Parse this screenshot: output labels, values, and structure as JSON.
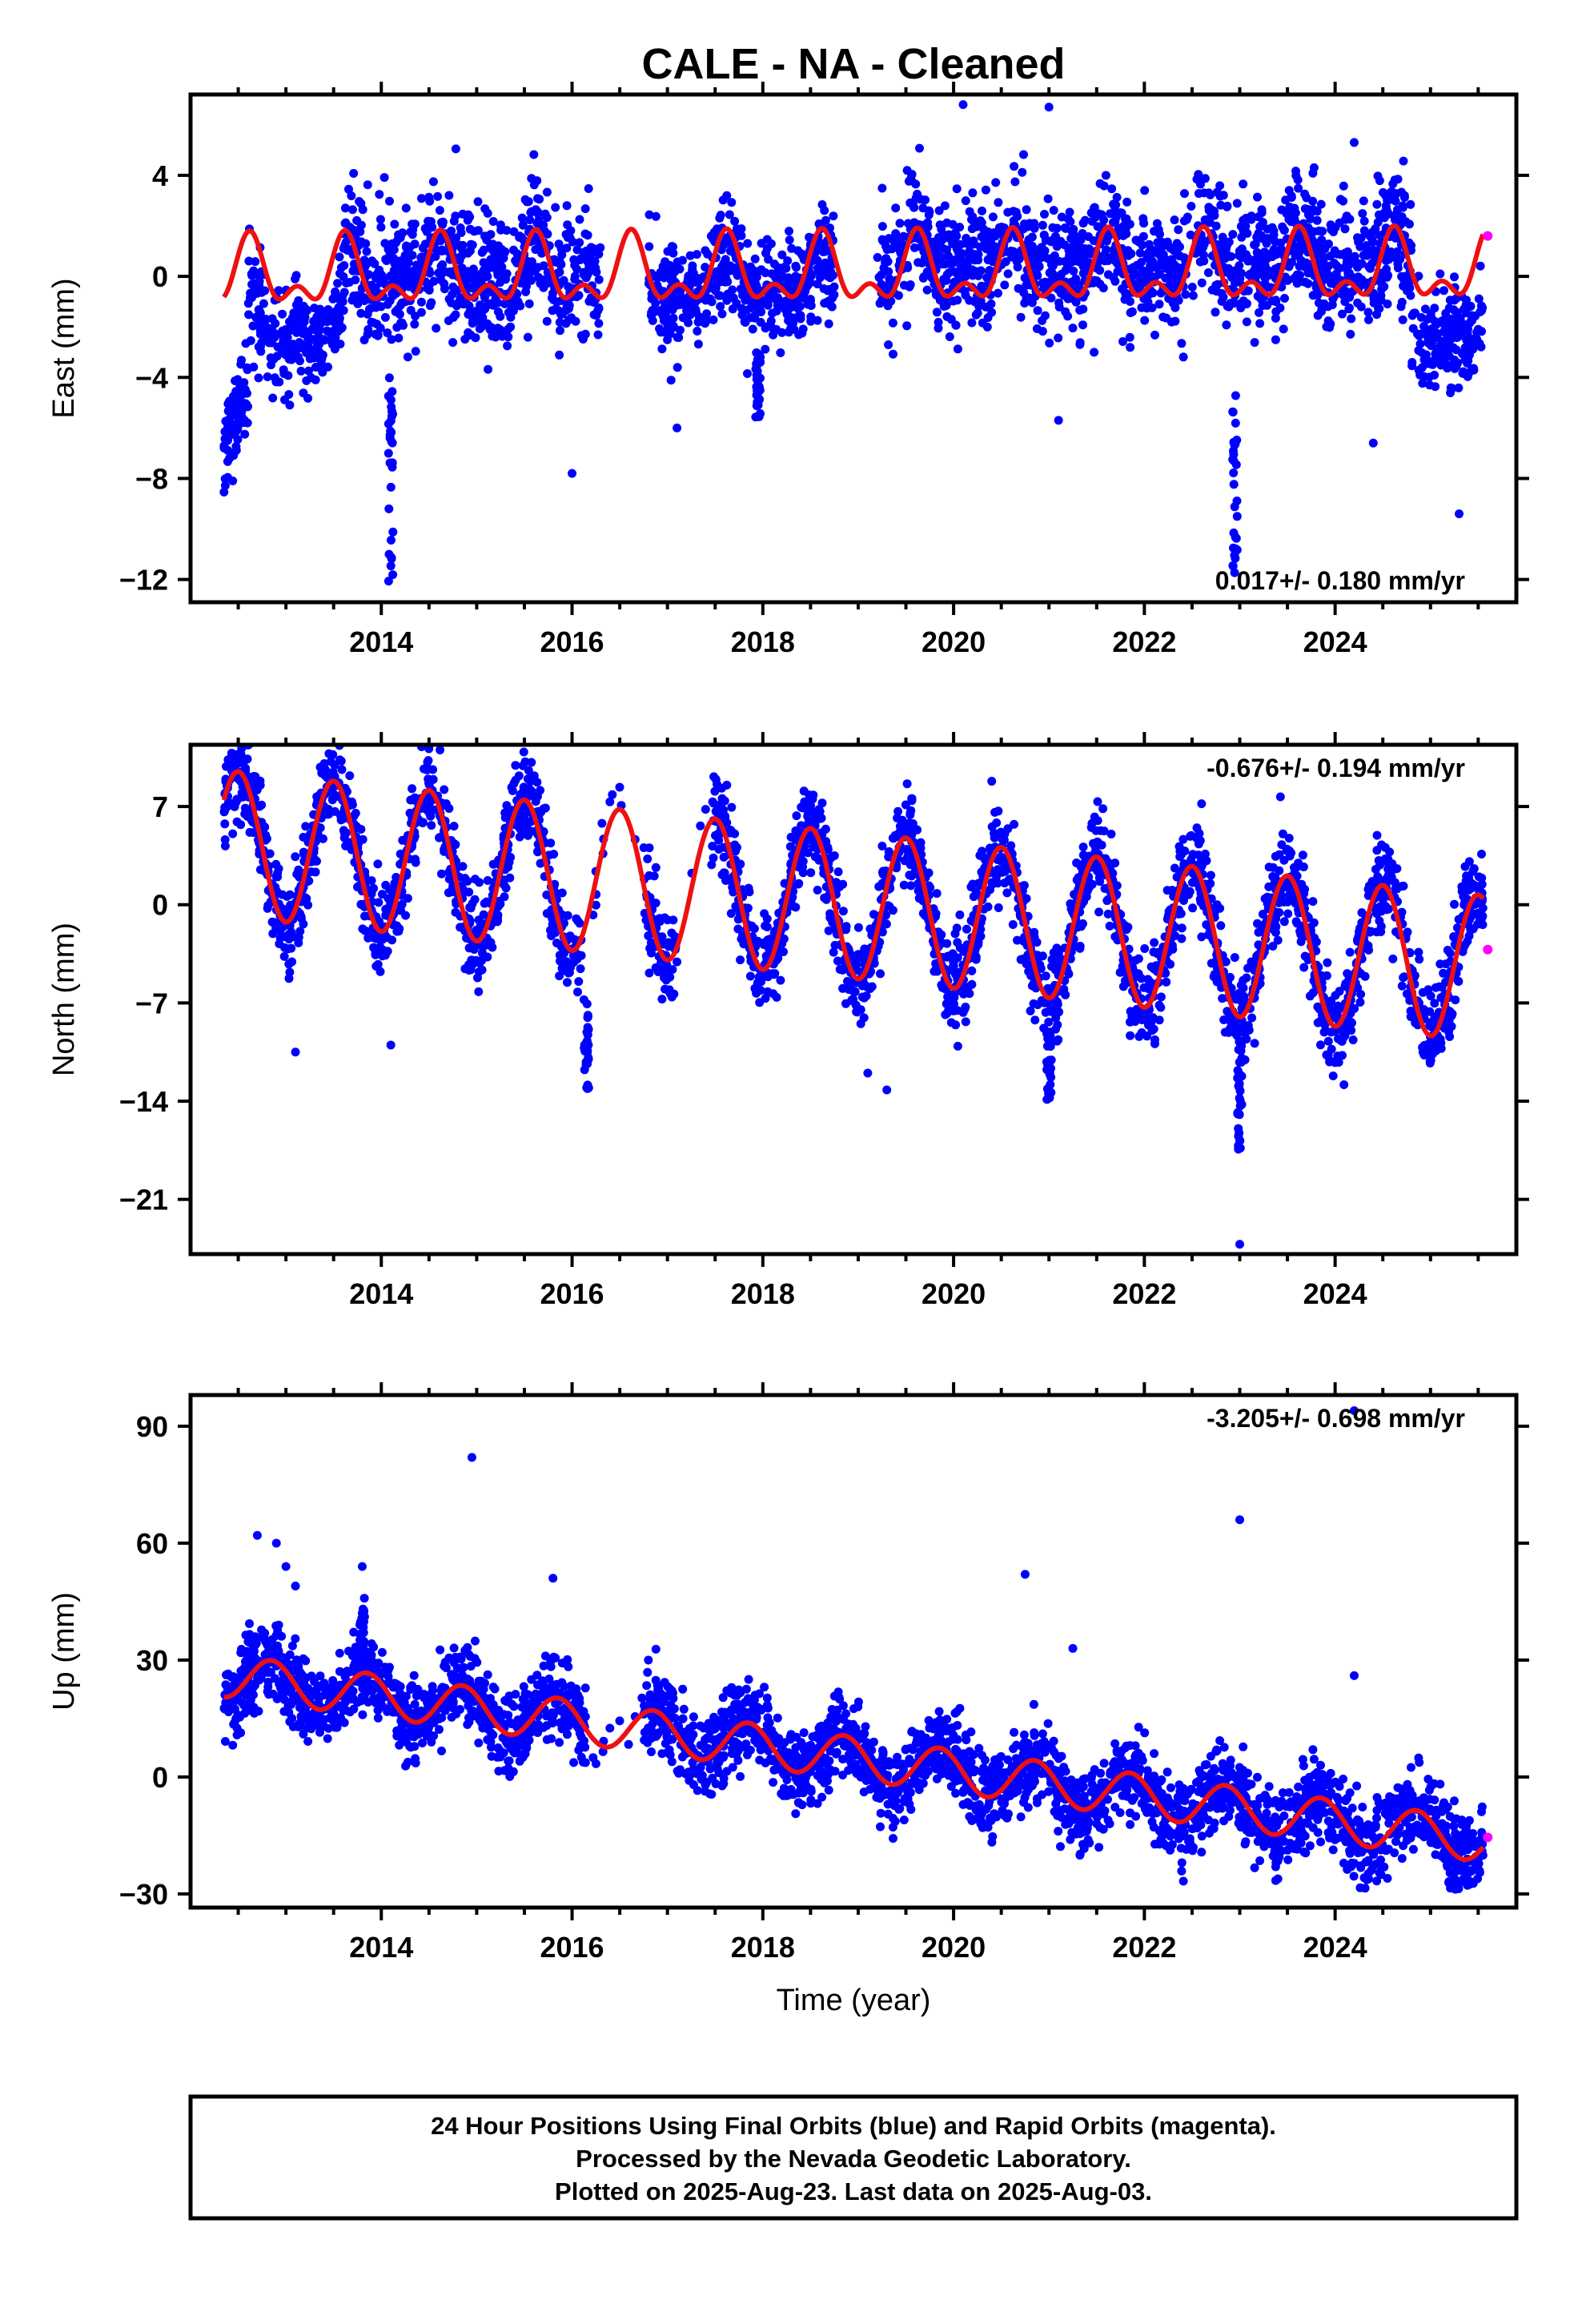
{
  "figure": {
    "title": "CALE  - NA - Cleaned",
    "footer_lines": [
      "24 Hour Positions Using Final Orbits (blue) and Rapid Orbits (magenta).",
      "Processed by the Nevada Geodetic Laboratory.",
      "Plotted on 2025-Aug-23. Last data on 2025-Aug-03."
    ]
  },
  "colors": {
    "final": "#0000ff",
    "rapid": "#ff00ff",
    "model": "#ee1111",
    "frame": "#000000"
  },
  "chart_data": [
    {
      "type": "scatter",
      "component": "east",
      "ylabel": "East (mm)",
      "xlabel": "",
      "xlim": [
        2012.0,
        2025.9
      ],
      "ylim": [
        -12.9,
        7.2
      ],
      "yticks": [
        -12,
        -8,
        -4,
        0,
        4
      ],
      "xticks": [
        2014,
        2016,
        2018,
        2020,
        2022,
        2024
      ],
      "rate_label": "0.017+/- 0.180 mm/yr",
      "rate_position": "bottom-right",
      "model": {
        "series": "seasonal fit (red)",
        "trend_mm_per_yr": 0.017,
        "offset": 0.0,
        "annual_amp": 1.1,
        "annual_peak": 0.62,
        "semiannual_amp": 0.7,
        "semiannual_peak": 0.62,
        "start": 2012.35,
        "end": 2025.55
      },
      "gaps": [
        [
          2016.3,
          2016.8
        ],
        [
          2018.75,
          2019.2
        ]
      ],
      "segments": [
        {
          "start": 2012.35,
          "end": 2012.6,
          "mean": -5.8,
          "noise": 0.9
        },
        {
          "start": 2012.6,
          "end": 2013.6,
          "mean": -2.2,
          "noise": 1.1
        },
        {
          "start": 2013.6,
          "end": 2016.3,
          "mean": 0.2,
          "noise": 1.3
        },
        {
          "start": 2016.8,
          "end": 2018.75,
          "mean": -0.4,
          "noise": 1.0
        },
        {
          "start": 2019.2,
          "end": 2024.8,
          "mean": 0.6,
          "noise": 1.2
        },
        {
          "start": 2024.8,
          "end": 2025.55,
          "mean": -2.4,
          "noise": 1.0
        }
      ],
      "final_points_count": 3400,
      "outlier_runs": [
        {
          "x": 2014.1,
          "y_from": -12.3,
          "y_to": -4.0
        },
        {
          "x": 2017.95,
          "y_from": -5.8,
          "y_to": -3.0
        },
        {
          "x": 2022.95,
          "y_from": -12.3,
          "y_to": -4.6
        }
      ],
      "outliers": [
        [
          2020.1,
          6.8
        ],
        [
          2021.0,
          6.7
        ],
        [
          2024.2,
          5.3
        ],
        [
          2016.0,
          -7.8
        ],
        [
          2017.1,
          -6.0
        ],
        [
          2021.1,
          -5.7
        ],
        [
          2024.4,
          -6.6
        ],
        [
          2025.3,
          -9.4
        ]
      ],
      "rapid_points": [
        [
          2025.6,
          1.6
        ]
      ]
    },
    {
      "type": "scatter",
      "component": "north",
      "ylabel": "North (mm)",
      "xlabel": "",
      "xlim": [
        2012.0,
        2025.9
      ],
      "ylim": [
        -24.9,
        11.4
      ],
      "yticks": [
        -21,
        -14,
        -7,
        0,
        7
      ],
      "xticks": [
        2014,
        2016,
        2018,
        2020,
        2022,
        2024
      ],
      "rate_label": "-0.676+/- 0.194 mm/yr",
      "rate_position": "top-right",
      "model": {
        "series": "seasonal fit (red)",
        "trend_mm_per_yr": -0.676,
        "offset": 4.4,
        "annual_amp": 5.2,
        "annual_peak": 0.5,
        "semiannual_amp": 0.0,
        "semiannual_peak": 0.0,
        "start": 2012.35,
        "end": 2025.55
      },
      "gaps": [
        [
          2016.1,
          2016.75
        ],
        [
          2017.1,
          2017.45
        ]
      ],
      "segments": [
        {
          "start": 2012.35,
          "end": 2025.55,
          "mean": 0.0,
          "noise": 1.6
        }
      ],
      "final_points_count": 3400,
      "outlier_runs": [
        {
          "x": 2016.15,
          "y_from": -13.2,
          "y_to": -6.0
        },
        {
          "x": 2023.0,
          "y_from": -17.5,
          "y_to": -8.0
        },
        {
          "x": 2021.0,
          "y_from": -14.0,
          "y_to": -9.0
        }
      ],
      "outliers": [
        [
          2023.0,
          -24.2
        ],
        [
          2019.1,
          -12.0
        ],
        [
          2019.3,
          -13.2
        ],
        [
          2013.1,
          -10.5
        ],
        [
          2014.1,
          -10.0
        ],
        [
          2017.4,
          6.8
        ],
        [
          2020.4,
          8.8
        ],
        [
          2022.6,
          7.2
        ],
        [
          2025.2,
          -9.4
        ]
      ],
      "rapid_points": [
        [
          2025.6,
          -3.2
        ]
      ]
    },
    {
      "type": "scatter",
      "component": "up",
      "ylabel": "Up (mm)",
      "xlabel": "Time (year)",
      "xlim": [
        2012.0,
        2025.9
      ],
      "ylim": [
        -33.5,
        98.0
      ],
      "yticks": [
        -30,
        0,
        30,
        60,
        90
      ],
      "xticks": [
        2014,
        2016,
        2018,
        2020,
        2022,
        2024
      ],
      "rate_label": "-3.205+/- 0.698 mm/yr",
      "rate_position": "top-right",
      "model": {
        "series": "seasonal fit (red)",
        "trend_mm_per_yr": -3.205,
        "offset": 26.0,
        "annual_amp": 5.5,
        "annual_peak": 0.85,
        "semiannual_amp": 0.0,
        "semiannual_peak": 0.0,
        "start": 2012.35,
        "end": 2025.55
      },
      "gaps": [
        [
          2016.15,
          2016.75
        ]
      ],
      "segments": [
        {
          "start": 2012.35,
          "end": 2025.55,
          "mean": 0.0,
          "noise": 5.0
        }
      ],
      "final_points_count": 3400,
      "outlier_runs": [
        {
          "x": 2013.8,
          "y_from": 30.0,
          "y_to": 46.0
        }
      ],
      "outliers": [
        [
          2014.95,
          82.0
        ],
        [
          2012.7,
          62.0
        ],
        [
          2012.9,
          60.0
        ],
        [
          2013.0,
          54.0
        ],
        [
          2013.1,
          49.0
        ],
        [
          2013.8,
          54.0
        ],
        [
          2015.8,
          51.0
        ],
        [
          2020.75,
          52.0
        ],
        [
          2021.25,
          33.0
        ],
        [
          2023.0,
          66.0
        ],
        [
          2024.2,
          94.0
        ],
        [
          2024.2,
          26.0
        ],
        [
          2016.8,
          30.0
        ]
      ],
      "rapid_points": [
        [
          2025.6,
          -15.5
        ]
      ]
    }
  ]
}
